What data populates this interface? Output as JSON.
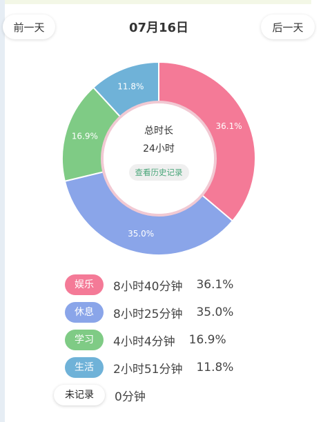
{
  "header": {
    "prev_label": "前一天",
    "next_label": "后一天",
    "date": "07月16日"
  },
  "center": {
    "title": "总时长",
    "value": "24小时",
    "history_label": "查看历史记录"
  },
  "chart_data": {
    "type": "pie",
    "categories": [
      "娱乐",
      "休息",
      "学习",
      "生活"
    ],
    "values": [
      36.1,
      35.0,
      16.9,
      11.8
    ],
    "labels": [
      "36.1%",
      "35.0%",
      "16.9%",
      "11.8%"
    ],
    "colors": [
      "#f47a97",
      "#8aa5e9",
      "#7fcb85",
      "#6fb2d8"
    ]
  },
  "legend": [
    {
      "name": "娱乐",
      "duration": "8小时40分钟",
      "percent": "36.1%",
      "color": "#f47a97"
    },
    {
      "name": "休息",
      "duration": "8小时25分钟",
      "percent": "35.0%",
      "color": "#8aa5e9"
    },
    {
      "name": "学习",
      "duration": "4小时4分钟",
      "percent": "16.9%",
      "color": "#7fcb85"
    },
    {
      "name": "生活",
      "duration": "2小时51分钟",
      "percent": "11.8%",
      "color": "#6fb2d8"
    },
    {
      "name": "未记录",
      "duration": "0分钟",
      "percent": "",
      "color": "#ffffff"
    }
  ]
}
